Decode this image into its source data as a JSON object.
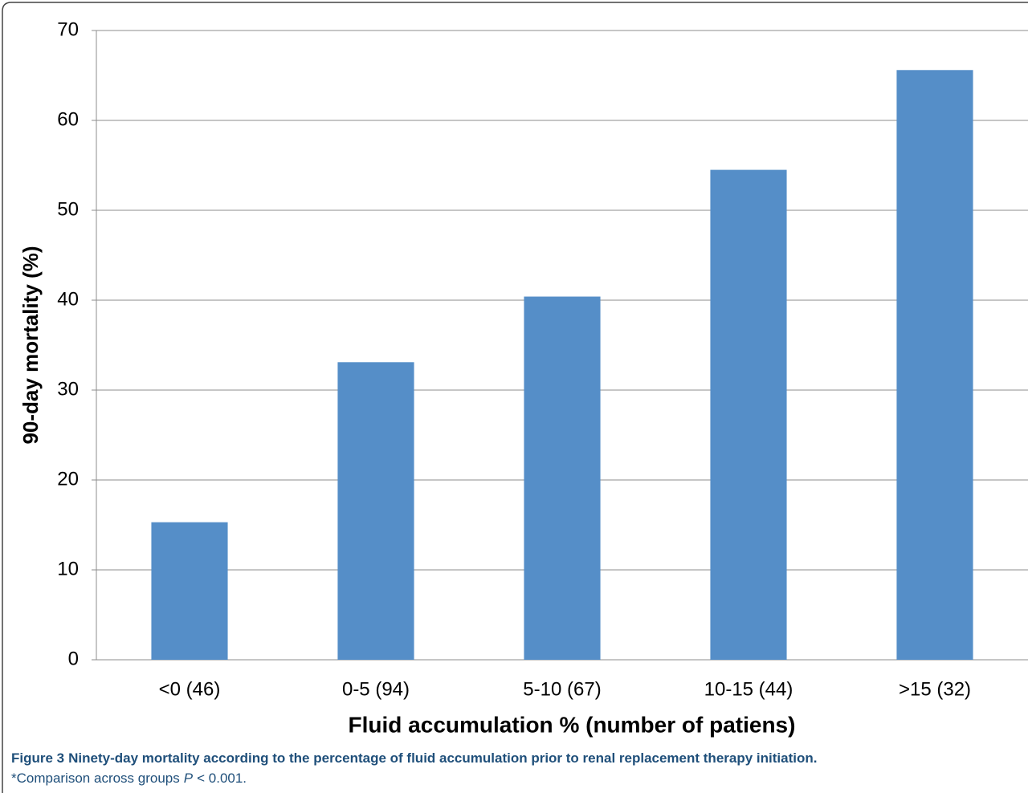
{
  "chart_data": {
    "type": "bar",
    "categories": [
      "<0 (46)",
      "0-5 (94)",
      "5-10 (67)",
      "10-15 (44)",
      ">15 (32)"
    ],
    "values": [
      15.3,
      33.1,
      40.4,
      54.5,
      65.6
    ],
    "color": "#558ec8",
    "xlabel": "Fluid accumulation % (number of patiens)",
    "ylabel": "90-day mortality (%)",
    "ylim": [
      0,
      70
    ],
    "yticks": [
      0,
      10,
      20,
      30,
      40,
      50,
      60,
      70
    ],
    "grid": true
  },
  "caption": {
    "label": "Figure 3",
    "title": "Ninety-day mortality according to the percentage of fluid accumulation prior to renal replacement therapy initiation.",
    "note_prefix": "*Comparison across groups",
    "note_italic": "P",
    "note_suffix": "< 0.001."
  }
}
